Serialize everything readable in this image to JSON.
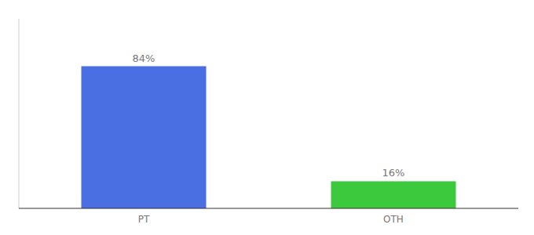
{
  "chart_data": {
    "type": "bar",
    "categories": [
      "PT",
      "OTH"
    ],
    "values": [
      84,
      16
    ],
    "value_labels": [
      "84%",
      "16%"
    ],
    "colors": [
      "#4A6FE3",
      "#3DC93D"
    ],
    "ylim": [
      0,
      112
    ],
    "data_labels": true,
    "tick_labels": "x",
    "grid": false
  }
}
